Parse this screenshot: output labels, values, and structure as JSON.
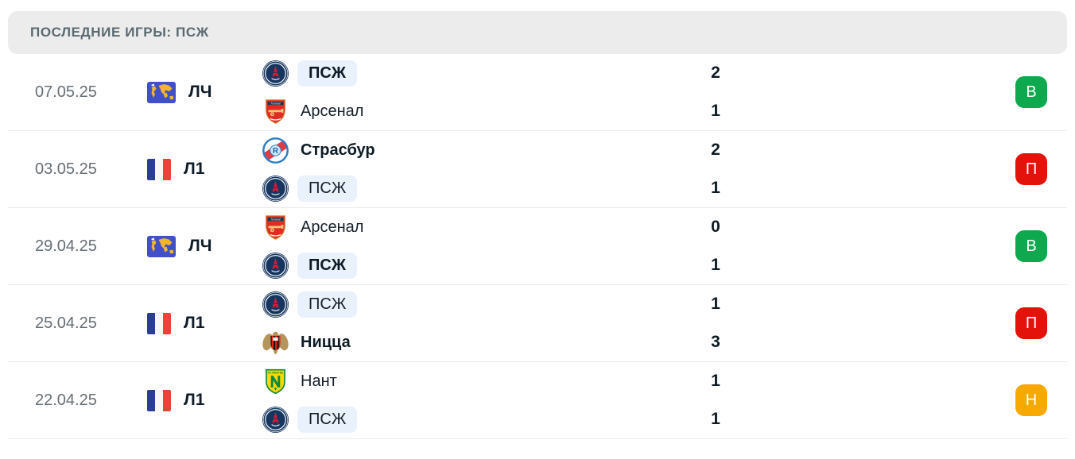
{
  "header": {
    "title": "ПОСЛЕДНИЕ ИГРЫ: ПСЖ"
  },
  "result_colors": {
    "win": "#0EA94E",
    "loss": "#E3120B",
    "draw": "#F7A801"
  },
  "highlight_color": "#E9F1FC",
  "matches": [
    {
      "date": "07.05.25",
      "competition": {
        "label": "ЛЧ",
        "icon": "world-map-icon"
      },
      "teams": [
        {
          "name": "ПСЖ",
          "logo": "psg-logo",
          "bold": true,
          "highlighted": true
        },
        {
          "name": "Арсенал",
          "logo": "arsenal-logo",
          "bold": false,
          "highlighted": false
        }
      ],
      "scores": [
        "2",
        "1"
      ],
      "result": {
        "letter": "В",
        "color": "#0EA94E"
      }
    },
    {
      "date": "03.05.25",
      "competition": {
        "label": "Л1",
        "icon": "france-flag-icon"
      },
      "teams": [
        {
          "name": "Страсбур",
          "logo": "strasbourg-logo",
          "bold": true,
          "highlighted": false
        },
        {
          "name": "ПСЖ",
          "logo": "psg-logo",
          "bold": false,
          "highlighted": true
        }
      ],
      "scores": [
        "2",
        "1"
      ],
      "result": {
        "letter": "П",
        "color": "#E3120B"
      }
    },
    {
      "date": "29.04.25",
      "competition": {
        "label": "ЛЧ",
        "icon": "world-map-icon"
      },
      "teams": [
        {
          "name": "Арсенал",
          "logo": "arsenal-logo",
          "bold": false,
          "highlighted": false
        },
        {
          "name": "ПСЖ",
          "logo": "psg-logo",
          "bold": true,
          "highlighted": true
        }
      ],
      "scores": [
        "0",
        "1"
      ],
      "result": {
        "letter": "В",
        "color": "#0EA94E"
      }
    },
    {
      "date": "25.04.25",
      "competition": {
        "label": "Л1",
        "icon": "france-flag-icon"
      },
      "teams": [
        {
          "name": "ПСЖ",
          "logo": "psg-logo",
          "bold": false,
          "highlighted": true
        },
        {
          "name": "Ницца",
          "logo": "nice-logo",
          "bold": true,
          "highlighted": false
        }
      ],
      "scores": [
        "1",
        "3"
      ],
      "result": {
        "letter": "П",
        "color": "#E3120B"
      }
    },
    {
      "date": "22.04.25",
      "competition": {
        "label": "Л1",
        "icon": "france-flag-icon"
      },
      "teams": [
        {
          "name": "Нант",
          "logo": "nantes-logo",
          "bold": false,
          "highlighted": false
        },
        {
          "name": "ПСЖ",
          "logo": "psg-logo",
          "bold": false,
          "highlighted": true
        }
      ],
      "scores": [
        "1",
        "1"
      ],
      "result": {
        "letter": "Н",
        "color": "#F7A801"
      }
    }
  ]
}
